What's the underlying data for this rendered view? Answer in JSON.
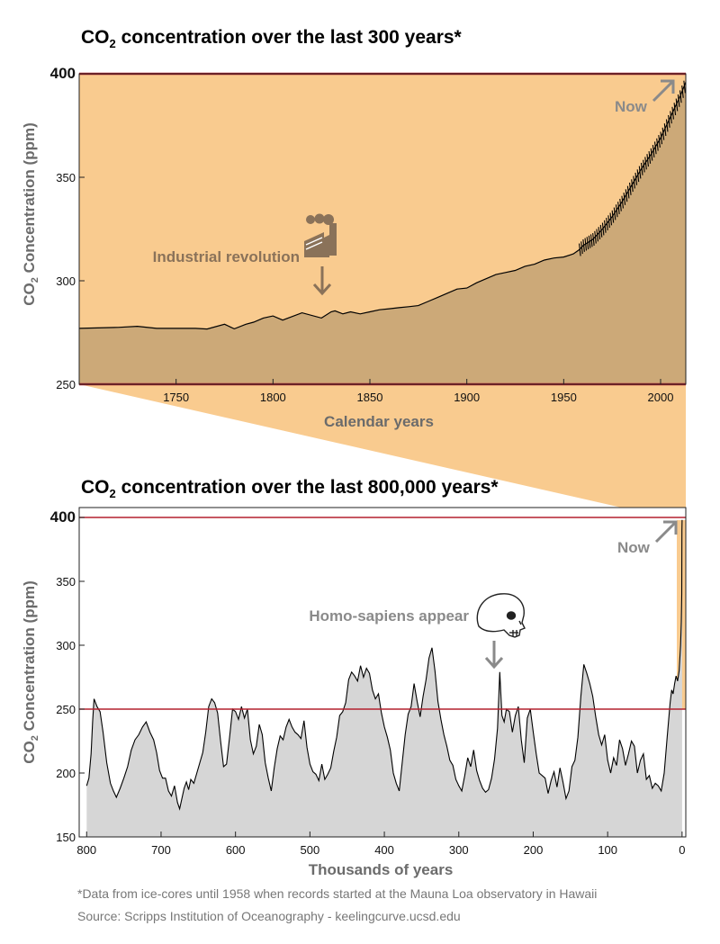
{
  "colors": {
    "light_orange": "#f9cb8f",
    "brown_fill": "#cca978",
    "gray_fill": "#d6d6d6",
    "red_line": "#b3212e",
    "brown_text": "#8a7259",
    "gray_text": "#8a8a8a"
  },
  "footnotes": {
    "line1": "*Data from ice-cores until 1958 when records started at the Mauna Loa observatory in Hawaii",
    "line2": "Source: Scripps Institution of Oceanography - keelingcurve.ucsd.edu"
  },
  "chart_data": [
    {
      "type": "area",
      "title_prefix": "CO",
      "title_sub": "2",
      "title_rest": " concentration over the last 300 years*",
      "ylabel_prefix": "CO",
      "ylabel_sub": "2",
      "ylabel_rest": " Concentration (ppm)",
      "xlabel": "Calendar years",
      "xlim": [
        1700,
        2013
      ],
      "ylim": [
        250,
        400
      ],
      "x_ticks": [
        1750,
        1800,
        1850,
        1900,
        1950,
        2000
      ],
      "x_tick_labels": [
        "1750",
        "1800",
        "1850",
        "1900",
        "1950",
        "2000"
      ],
      "y_ticks": [
        250,
        300,
        350,
        400
      ],
      "y_tick_labels": [
        "250",
        "300",
        "350",
        "400"
      ],
      "reference_lines": [
        400,
        250
      ],
      "grid": false,
      "series": [
        {
          "x": [
            1700,
            1720,
            1730,
            1740,
            1750,
            1760,
            1766,
            1775,
            1780,
            1786,
            1790,
            1795,
            1800,
            1805,
            1815,
            1825,
            1830,
            1832,
            1836,
            1840,
            1845,
            1850,
            1855,
            1860,
            1865,
            1870,
            1875,
            1880,
            1885,
            1890,
            1895,
            1900,
            1905,
            1910,
            1915,
            1920,
            1925,
            1930,
            1935,
            1940,
            1945,
            1950,
            1955,
            1958,
            1960,
            1965,
            1970,
            1975,
            1980,
            1985,
            1990,
            1995,
            2000,
            2005,
            2010,
            2013
          ],
          "values": [
            277,
            277.5,
            278,
            277,
            277,
            277,
            276.7,
            279,
            276.8,
            279,
            280,
            282,
            283,
            281,
            284.5,
            282,
            285,
            285.5,
            284,
            285,
            284,
            285,
            286,
            286.5,
            287,
            287.5,
            288,
            290,
            292,
            294,
            296,
            296.5,
            299,
            301,
            303,
            304,
            305,
            307,
            308,
            310,
            311,
            311.5,
            313,
            315,
            317,
            320,
            325,
            331,
            338,
            346,
            354,
            361,
            369,
            379,
            389,
            396
          ]
        }
      ],
      "annotations": [
        {
          "text": "Industrial revolution",
          "x": 1826,
          "icon": "factory-icon"
        },
        {
          "text": "Now",
          "x": 2013,
          "icon": "arrow-up-right-icon"
        }
      ]
    },
    {
      "type": "area",
      "title_prefix": "CO",
      "title_sub": "2",
      "title_rest": " concentration over the last 800,000 years*",
      "ylabel_prefix": "CO",
      "ylabel_sub": "2",
      "ylabel_rest": " Concentration (ppm)",
      "xlabel": "Thousands of years",
      "xlim": [
        810,
        -5
      ],
      "ylim": [
        150,
        400
      ],
      "x_ticks": [
        800,
        700,
        600,
        500,
        400,
        300,
        200,
        100,
        0
      ],
      "x_tick_labels": [
        "800",
        "700",
        "600",
        "500",
        "400",
        "300",
        "200",
        "100",
        "0"
      ],
      "y_ticks": [
        150,
        200,
        250,
        300,
        350,
        400
      ],
      "y_tick_labels": [
        "150",
        "200",
        "250",
        "300",
        "350",
        "400"
      ],
      "reference_lines": [
        400,
        250
      ],
      "grid": false,
      "series": [
        {
          "x": [
            800,
            797,
            794,
            792,
            790,
            786,
            782,
            778,
            773,
            768,
            764,
            760,
            755,
            750,
            745,
            740,
            735,
            730,
            725,
            720,
            715,
            710,
            706,
            702,
            698,
            694,
            690,
            686,
            682,
            678,
            675,
            672,
            669,
            666,
            663,
            660,
            656,
            652,
            648,
            644,
            640,
            636,
            632,
            628,
            624,
            620,
            616,
            612,
            608,
            604,
            600,
            596,
            592,
            588,
            584,
            580,
            576,
            572,
            568,
            564,
            560,
            556,
            552,
            548,
            544,
            540,
            536,
            532,
            528,
            524,
            520,
            516,
            512,
            508,
            504,
            500,
            496,
            492,
            488,
            484,
            480,
            476,
            472,
            468,
            464,
            460,
            456,
            452,
            448,
            444,
            440,
            436,
            432,
            428,
            424,
            420,
            416,
            412,
            408,
            404,
            400,
            396,
            392,
            388,
            384,
            380,
            376,
            372,
            368,
            364,
            360,
            356,
            352,
            348,
            344,
            340,
            336,
            332,
            328,
            324,
            320,
            316,
            312,
            308,
            304,
            300,
            296,
            292,
            288,
            284,
            280,
            276,
            272,
            268,
            264,
            260,
            256,
            252,
            248,
            245,
            242,
            239,
            236,
            232,
            228,
            224,
            220,
            216,
            212,
            208,
            204,
            200,
            196,
            192,
            188,
            184,
            180,
            176,
            172,
            168,
            164,
            160,
            156,
            152,
            148,
            144,
            140,
            136,
            132,
            128,
            124,
            120,
            116,
            112,
            108,
            104,
            100,
            96,
            92,
            88,
            84,
            80,
            76,
            72,
            68,
            64,
            60,
            56,
            52,
            48,
            44,
            40,
            36,
            32,
            28,
            24,
            20,
            16,
            14,
            12,
            10,
            8,
            6,
            4,
            2,
            1,
            0.5,
            0.2,
            0
          ],
          "values": [
            190,
            196,
            215,
            240,
            258,
            252,
            248,
            232,
            208,
            192,
            186,
            181,
            188,
            196,
            205,
            218,
            226,
            230,
            236,
            240,
            232,
            226,
            216,
            202,
            196,
            196,
            186,
            182,
            190,
            177,
            172,
            180,
            188,
            193,
            187,
            195,
            192,
            200,
            208,
            216,
            232,
            252,
            258,
            255,
            247,
            225,
            205,
            207,
            228,
            250,
            248,
            242,
            252,
            243,
            250,
            226,
            215,
            221,
            238,
            230,
            208,
            196,
            186,
            204,
            219,
            229,
            226,
            236,
            242,
            236,
            232,
            230,
            227,
            241,
            220,
            207,
            201,
            199,
            194,
            207,
            195,
            199,
            204,
            217,
            228,
            245,
            248,
            255,
            273,
            279,
            276,
            272,
            284,
            275,
            282,
            278,
            265,
            258,
            262,
            247,
            236,
            228,
            218,
            200,
            192,
            186,
            208,
            230,
            246,
            252,
            270,
            256,
            244,
            260,
            273,
            290,
            298,
            280,
            256,
            242,
            230,
            221,
            210,
            206,
            195,
            190,
            186,
            198,
            212,
            205,
            218,
            202,
            194,
            188,
            185,
            187,
            196,
            211,
            235,
            279,
            245,
            240,
            250,
            248,
            232,
            245,
            252,
            226,
            208,
            243,
            250,
            232,
            215,
            200,
            198,
            196,
            184,
            194,
            201,
            189,
            204,
            193,
            180,
            186,
            205,
            210,
            228,
            260,
            285,
            278,
            270,
            260,
            244,
            230,
            222,
            230,
            210,
            200,
            212,
            206,
            226,
            219,
            206,
            215,
            225,
            221,
            200,
            210,
            215,
            195,
            198,
            188,
            192,
            190,
            186,
            200,
            228,
            255,
            265,
            262,
            270,
            276,
            272,
            280,
            300,
            318,
            340,
            390,
            398
          ]
        }
      ],
      "annotations": [
        {
          "text": "Homo-sapiens appear",
          "x": 250,
          "icon": "skull-icon"
        },
        {
          "text": "Now",
          "x": 0,
          "icon": "arrow-up-right-icon"
        }
      ]
    }
  ]
}
